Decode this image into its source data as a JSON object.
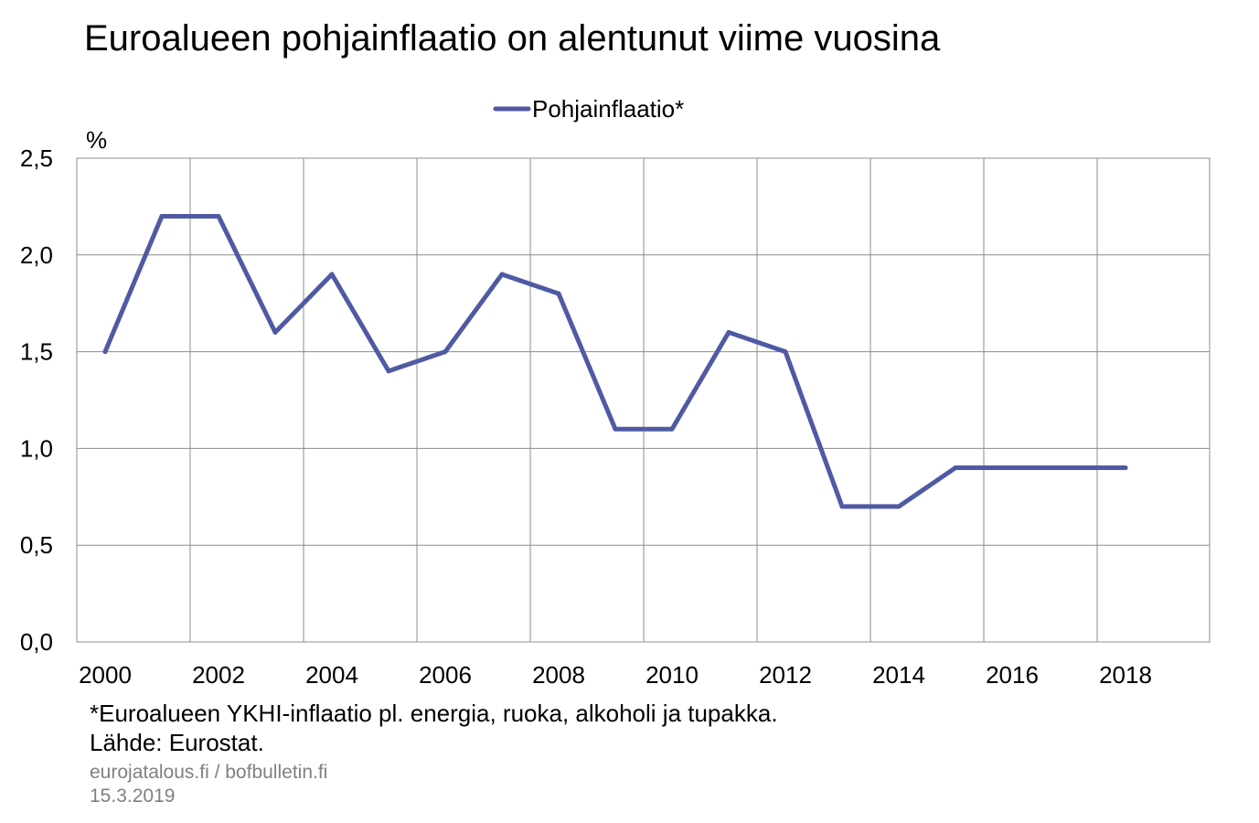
{
  "title": "Euroalueen pohjainflaatio on alentunut viime vuosina",
  "footnote": "*Euroalueen YKHI-inflaatio pl. energia, ruoka, alkoholi ja tupakka.",
  "source": "Lähde: Eurostat.",
  "website": "eurojatalous.fi / bofbulletin.fi",
  "date": "15.3.2019",
  "chart_data": {
    "type": "line",
    "title": "Euroalueen pohjainflaatio on alentunut viime vuosina",
    "ylabel": "%",
    "xlabel": "",
    "ylim": [
      0,
      2.5
    ],
    "yticks": [
      "0,0",
      "0,5",
      "1,0",
      "1,5",
      "2,0",
      "2,5"
    ],
    "xticks": [
      "2000",
      "2002",
      "2004",
      "2006",
      "2008",
      "2010",
      "2012",
      "2014",
      "2016",
      "2018"
    ],
    "grid": true,
    "legend": "top-center",
    "x": [
      2000,
      2001,
      2002,
      2003,
      2004,
      2005,
      2006,
      2007,
      2008,
      2009,
      2010,
      2011,
      2012,
      2013,
      2014,
      2015,
      2016,
      2017,
      2018
    ],
    "series": [
      {
        "name": "Pohjainflaatio*",
        "color": "#4f5aa3",
        "values": [
          1.5,
          2.2,
          2.2,
          1.6,
          1.9,
          1.4,
          1.5,
          1.9,
          1.8,
          1.1,
          1.1,
          1.6,
          1.5,
          0.7,
          0.7,
          0.9,
          0.9,
          0.9,
          0.9
        ]
      }
    ]
  }
}
